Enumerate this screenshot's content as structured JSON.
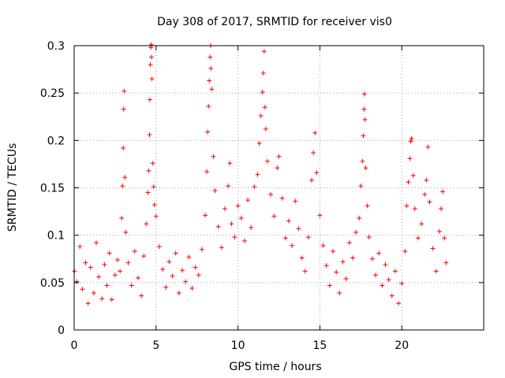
{
  "chart_data": {
    "type": "scatter",
    "title": "Day 308 of 2017, SRMTID for receiver vis0",
    "xlabel": "GPS time / hours",
    "ylabel": "SRMTID / TECUs",
    "xlim": [
      0,
      25
    ],
    "ylim": [
      0,
      0.3
    ],
    "xticks": [
      0,
      5,
      10,
      15,
      20
    ],
    "xtick_labels": [
      "0",
      "5",
      "10",
      "15",
      "20"
    ],
    "yticks": [
      0,
      0.05,
      0.1,
      0.15,
      0.2,
      0.25,
      0.3
    ],
    "ytick_labels": [
      "0",
      "0.05",
      "0.1",
      "0.15",
      "0.2",
      "0.25",
      "0.3"
    ],
    "grid": true,
    "marker": "+",
    "series": [
      {
        "name": "SRMTID",
        "color": "#ff0000",
        "points": [
          [
            0.02,
            0.062
          ],
          [
            0.15,
            0.051
          ],
          [
            0.35,
            0.088
          ],
          [
            0.5,
            0.043
          ],
          [
            0.7,
            0.071
          ],
          [
            0.85,
            0.028
          ],
          [
            1,
            0.066
          ],
          [
            1.2,
            0.039
          ],
          [
            1.35,
            0.092
          ],
          [
            1.5,
            0.056
          ],
          [
            1.7,
            0.033
          ],
          [
            1.85,
            0.069
          ],
          [
            2,
            0.047
          ],
          [
            2.15,
            0.081
          ],
          [
            2.3,
            0.032
          ],
          [
            2.5,
            0.058
          ],
          [
            2.65,
            0.074
          ],
          [
            2.8,
            0.062
          ],
          [
            2.9,
            0.118
          ],
          [
            2.95,
            0.152
          ],
          [
            3,
            0.192
          ],
          [
            3.02,
            0.233
          ],
          [
            3.05,
            0.252
          ],
          [
            3.1,
            0.161
          ],
          [
            3.15,
            0.103
          ],
          [
            3.3,
            0.071
          ],
          [
            3.5,
            0.047
          ],
          [
            3.7,
            0.083
          ],
          [
            3.9,
            0.055
          ],
          [
            4.1,
            0.036
          ],
          [
            4.25,
            0.078
          ],
          [
            4.4,
            0.112
          ],
          [
            4.5,
            0.145
          ],
          [
            4.55,
            0.168
          ],
          [
            4.6,
            0.206
          ],
          [
            4.62,
            0.243
          ],
          [
            4.65,
            0.28
          ],
          [
            4.68,
            0.298
          ],
          [
            4.7,
            0.301
          ],
          [
            4.72,
            0.288
          ],
          [
            4.75,
            0.265
          ],
          [
            4.8,
            0.176
          ],
          [
            4.85,
            0.151
          ],
          [
            4.9,
            0.132
          ],
          [
            5,
            0.12
          ],
          [
            5.2,
            0.088
          ],
          [
            5.4,
            0.064
          ],
          [
            5.6,
            0.045
          ],
          [
            5.8,
            0.072
          ],
          [
            6,
            0.057
          ],
          [
            6.2,
            0.081
          ],
          [
            6.4,
            0.039
          ],
          [
            6.6,
            0.063
          ],
          [
            6.8,
            0.051
          ],
          [
            7,
            0.077
          ],
          [
            7.2,
            0.044
          ],
          [
            7.4,
            0.066
          ],
          [
            7.6,
            0.058
          ],
          [
            7.8,
            0.085
          ],
          [
            8,
            0.121
          ],
          [
            8.1,
            0.167
          ],
          [
            8.15,
            0.209
          ],
          [
            8.2,
            0.236
          ],
          [
            8.25,
            0.263
          ],
          [
            8.3,
            0.288
          ],
          [
            8.33,
            0.3
          ],
          [
            8.35,
            0.276
          ],
          [
            8.4,
            0.254
          ],
          [
            8.5,
            0.183
          ],
          [
            8.6,
            0.147
          ],
          [
            8.8,
            0.109
          ],
          [
            9,
            0.087
          ],
          [
            9.2,
            0.128
          ],
          [
            9.4,
            0.152
          ],
          [
            9.5,
            0.176
          ],
          [
            9.6,
            0.112
          ],
          [
            9.8,
            0.098
          ],
          [
            10,
            0.131
          ],
          [
            10.2,
            0.118
          ],
          [
            10.4,
            0.094
          ],
          [
            10.6,
            0.137
          ],
          [
            10.8,
            0.108
          ],
          [
            11,
            0.151
          ],
          [
            11.2,
            0.164
          ],
          [
            11.3,
            0.197
          ],
          [
            11.4,
            0.226
          ],
          [
            11.5,
            0.251
          ],
          [
            11.55,
            0.271
          ],
          [
            11.6,
            0.294
          ],
          [
            11.65,
            0.235
          ],
          [
            11.7,
            0.212
          ],
          [
            11.8,
            0.178
          ],
          [
            12,
            0.143
          ],
          [
            12.2,
            0.12
          ],
          [
            12.4,
            0.171
          ],
          [
            12.5,
            0.183
          ],
          [
            12.7,
            0.139
          ],
          [
            12.9,
            0.097
          ],
          [
            13.1,
            0.115
          ],
          [
            13.3,
            0.089
          ],
          [
            13.5,
            0.136
          ],
          [
            13.7,
            0.107
          ],
          [
            13.9,
            0.076
          ],
          [
            14.1,
            0.062
          ],
          [
            14.3,
            0.098
          ],
          [
            14.5,
            0.158
          ],
          [
            14.6,
            0.187
          ],
          [
            14.7,
            0.208
          ],
          [
            14.8,
            0.166
          ],
          [
            15,
            0.121
          ],
          [
            15.2,
            0.089
          ],
          [
            15.4,
            0.068
          ],
          [
            15.6,
            0.047
          ],
          [
            15.8,
            0.083
          ],
          [
            16,
            0.061
          ],
          [
            16.2,
            0.039
          ],
          [
            16.4,
            0.072
          ],
          [
            16.6,
            0.054
          ],
          [
            16.8,
            0.092
          ],
          [
            17,
            0.076
          ],
          [
            17.2,
            0.103
          ],
          [
            17.4,
            0.118
          ],
          [
            17.5,
            0.152
          ],
          [
            17.6,
            0.178
          ],
          [
            17.65,
            0.205
          ],
          [
            17.7,
            0.233
          ],
          [
            17.72,
            0.249
          ],
          [
            17.75,
            0.222
          ],
          [
            17.8,
            0.171
          ],
          [
            17.9,
            0.131
          ],
          [
            18,
            0.098
          ],
          [
            18.2,
            0.075
          ],
          [
            18.4,
            0.058
          ],
          [
            18.6,
            0.081
          ],
          [
            18.8,
            0.047
          ],
          [
            19,
            0.069
          ],
          [
            19.2,
            0.053
          ],
          [
            19.4,
            0.036
          ],
          [
            19.6,
            0.062
          ],
          [
            19.8,
            0.028
          ],
          [
            20,
            0.049
          ],
          [
            20.2,
            0.083
          ],
          [
            20.3,
            0.131
          ],
          [
            20.4,
            0.156
          ],
          [
            20.5,
            0.181
          ],
          [
            20.55,
            0.199
          ],
          [
            20.6,
            0.202
          ],
          [
            20.7,
            0.163
          ],
          [
            20.8,
            0.128
          ],
          [
            21,
            0.097
          ],
          [
            21.2,
            0.112
          ],
          [
            21.4,
            0.143
          ],
          [
            21.5,
            0.158
          ],
          [
            21.6,
            0.193
          ],
          [
            21.7,
            0.135
          ],
          [
            21.9,
            0.086
          ],
          [
            22.1,
            0.062
          ],
          [
            22.3,
            0.104
          ],
          [
            22.4,
            0.128
          ],
          [
            22.5,
            0.146
          ],
          [
            22.6,
            0.097
          ],
          [
            22.7,
            0.071
          ]
        ]
      }
    ]
  }
}
